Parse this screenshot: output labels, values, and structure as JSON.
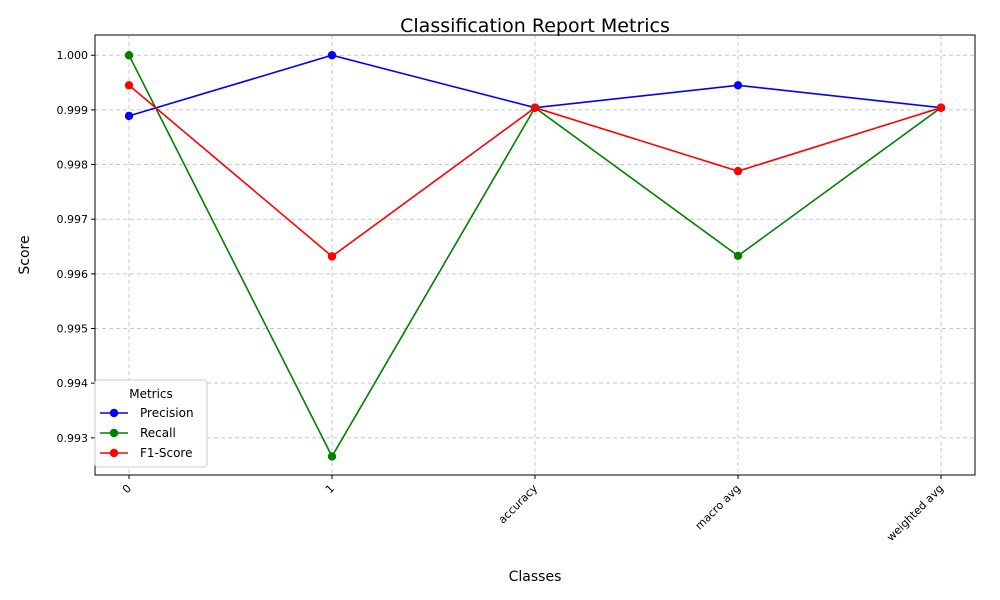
{
  "chart_data": {
    "type": "line",
    "title": "Classification Report Metrics",
    "xlabel": "Classes",
    "ylabel": "Score",
    "categories": [
      "0",
      "1",
      "accuracy",
      "macro avg",
      "weighted avg"
    ],
    "series": [
      {
        "name": "Precision",
        "color": "#0000ff",
        "values": [
          0.99889,
          1.0,
          0.99904,
          0.99945,
          0.99904
        ]
      },
      {
        "name": "Recall",
        "color": "#008000",
        "values": [
          1.0,
          0.99266,
          0.99904,
          0.99633,
          0.99904
        ]
      },
      {
        "name": "F1-Score",
        "color": "#ff0000",
        "values": [
          0.99945,
          0.99632,
          0.99904,
          0.99788,
          0.99904
        ]
      }
    ],
    "ylim": [
      0.99232,
      1.00037
    ],
    "yticks": [
      "0.993",
      "0.994",
      "0.995",
      "0.996",
      "0.997",
      "0.998",
      "0.999",
      "1.000"
    ],
    "grid": true,
    "legend": {
      "title": "Metrics",
      "placement": "lower-left"
    }
  }
}
